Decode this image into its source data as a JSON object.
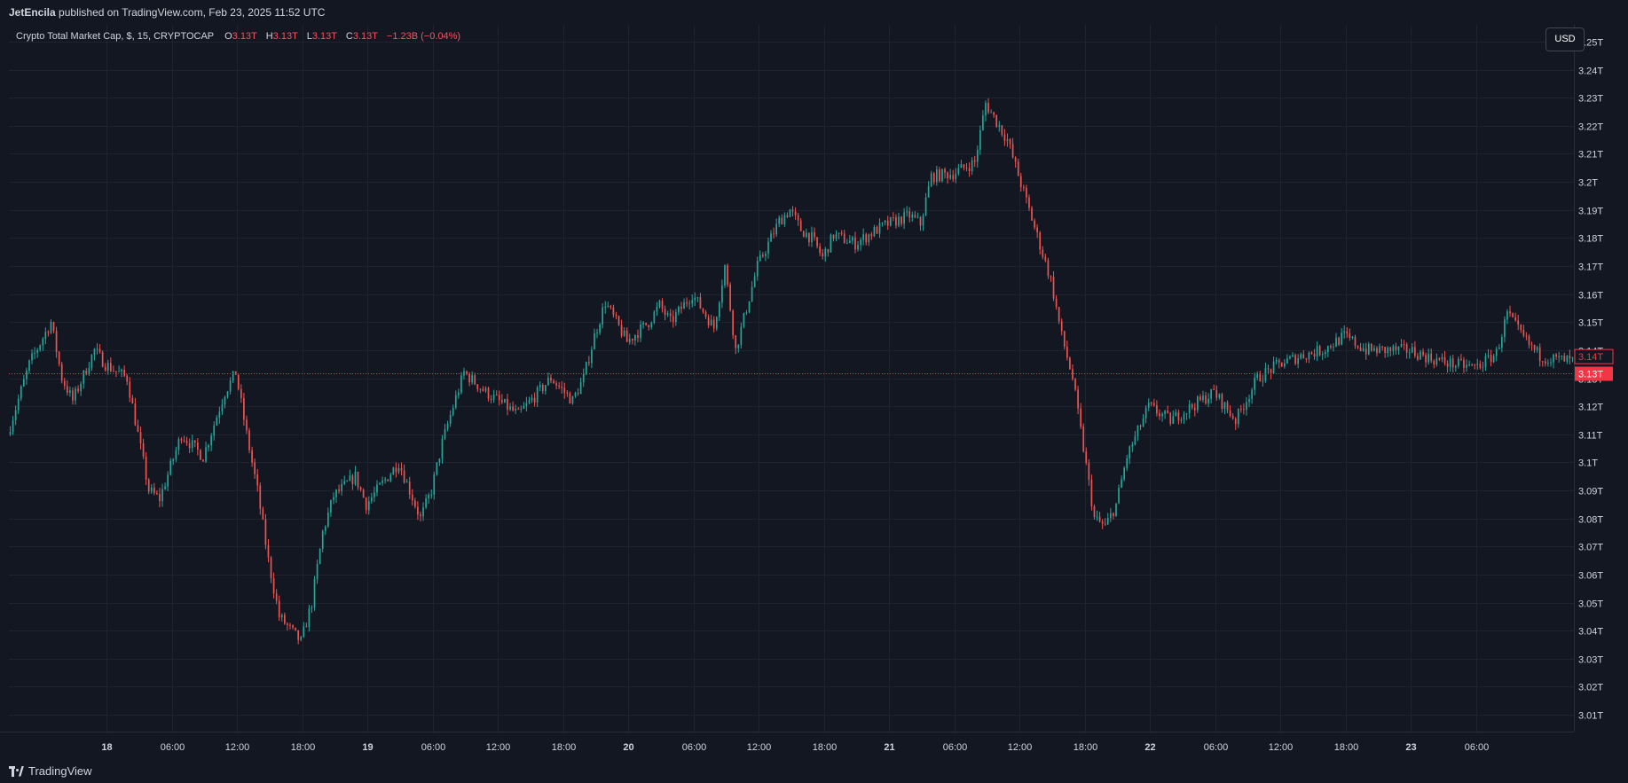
{
  "header": {
    "user": "JetEncila",
    "published_text": "published on TradingView.com, Feb 23, 2025 11:52 UTC"
  },
  "legend": {
    "symbol": "Crypto Total Market Cap, $, 15, CRYPTOCAP",
    "o_label": "O",
    "o_value": "3.13T",
    "h_label": "H",
    "h_value": "3.13T",
    "l_label": "L",
    "l_value": "3.13T",
    "c_label": "C",
    "c_value": "3.13T",
    "change": "−1.23B (−0.04%)"
  },
  "currency_button": "USD",
  "footer": {
    "brand": "TradingView"
  },
  "colors": {
    "background": "#131722",
    "grid": "#1f2330",
    "up": "#26a69a",
    "down": "#ef5350",
    "text": "#d1d4dc",
    "price_label": "#f23645"
  },
  "chart_data": {
    "type": "candlestick",
    "symbol": "Crypto Total Market Cap",
    "interval": "15",
    "x_tick_labels": [
      "18",
      "06:00",
      "12:00",
      "18:00",
      "19",
      "06:00",
      "12:00",
      "18:00",
      "20",
      "06:00",
      "12:00",
      "18:00",
      "21",
      "06:00",
      "12:00",
      "18:00",
      "22",
      "06:00",
      "12:00",
      "18:00",
      "23",
      "06:00"
    ],
    "x_range_hours": [
      -9,
      135
    ],
    "y_tick_labels": [
      "3.01T",
      "3.02T",
      "3.03T",
      "3.04T",
      "3.05T",
      "3.06T",
      "3.07T",
      "3.08T",
      "3.09T",
      "3.1T",
      "3.11T",
      "3.12T",
      "3.13T",
      "3.14T",
      "3.15T",
      "3.16T",
      "3.17T",
      "3.18T",
      "3.19T",
      "3.2T",
      "3.21T",
      "3.22T",
      "3.23T",
      "3.24T",
      "3.25T"
    ],
    "y_unit": "T",
    "ylim": [
      3.004,
      3.256
    ],
    "current_price_label": "3.13T",
    "secondary_price_label": "3.14T",
    "current_price": 3.1317,
    "secondary_price": 3.1377,
    "close_path_hours": [
      -9,
      -7,
      -5,
      -4,
      -3,
      -1,
      0,
      2,
      3,
      4,
      5,
      7,
      9,
      11,
      12,
      13,
      14,
      15,
      16,
      18,
      19,
      20,
      21,
      23,
      24,
      27,
      28,
      29,
      30,
      31,
      32,
      33,
      35,
      38,
      41,
      43,
      44,
      45,
      46,
      48,
      50,
      51,
      52,
      54,
      56,
      57,
      58,
      60,
      62,
      63,
      64,
      65,
      66,
      67,
      69,
      71,
      72,
      74,
      75,
      76,
      78,
      79,
      80,
      81,
      83,
      85,
      87,
      88,
      89,
      90,
      91,
      92,
      93,
      94,
      96,
      98,
      100,
      102,
      104,
      106,
      108,
      110,
      112,
      114,
      116,
      118,
      120,
      122,
      124,
      126,
      127,
      128,
      129,
      130,
      131,
      132,
      133,
      135
    ],
    "close_path_values": [
      3.11,
      3.135,
      3.15,
      3.13,
      3.122,
      3.14,
      3.135,
      3.13,
      3.11,
      3.09,
      3.087,
      3.11,
      3.102,
      3.125,
      3.132,
      3.11,
      3.09,
      3.065,
      3.045,
      3.036,
      3.05,
      3.075,
      3.088,
      3.095,
      3.085,
      3.1,
      3.09,
      3.08,
      3.09,
      3.107,
      3.12,
      3.132,
      3.125,
      3.117,
      3.13,
      3.122,
      3.13,
      3.145,
      3.157,
      3.143,
      3.15,
      3.156,
      3.15,
      3.16,
      3.148,
      3.17,
      3.14,
      3.17,
      3.186,
      3.19,
      3.183,
      3.18,
      3.173,
      3.181,
      3.178,
      3.183,
      3.185,
      3.188,
      3.185,
      3.202,
      3.203,
      3.205,
      3.207,
      3.228,
      3.215,
      3.19,
      3.165,
      3.145,
      3.13,
      3.105,
      3.08,
      3.077,
      3.085,
      3.102,
      3.12,
      3.115,
      3.12,
      3.125,
      3.115,
      3.13,
      3.135,
      3.138,
      3.14,
      3.145,
      3.14,
      3.14,
      3.14,
      3.137,
      3.135,
      3.134,
      3.136,
      3.139,
      3.153,
      3.147,
      3.142,
      3.138,
      3.137,
      3.136
    ]
  }
}
